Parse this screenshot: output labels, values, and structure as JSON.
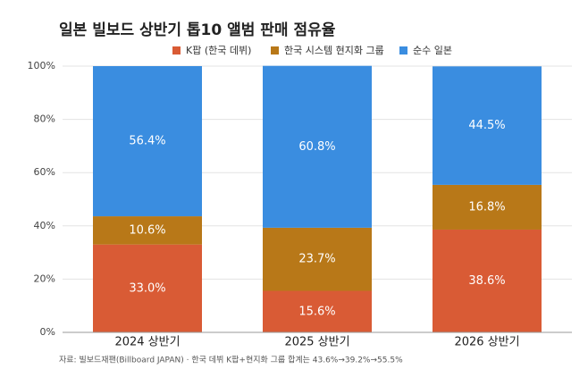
{
  "chart_data": {
    "type": "stacked-bar",
    "title": "일본 빌보드 상반기 톱10 앨범 판매 점유율",
    "source": "자료: 빌보드재팬(Billboard JAPAN) · 한국 데뷔 K팝+현지화 그룹 합계는 43.6%→39.2%→55.5%",
    "categories": [
      "2024 상반기",
      "2025 상반기",
      "2026 상반기"
    ],
    "series": [
      {
        "name": "K팝 (한국 데뷔)",
        "color": "#d95b35",
        "values": [
          33.0,
          15.6,
          38.6
        ],
        "value_labels": [
          "33.0%",
          "15.6%",
          "38.6%"
        ]
      },
      {
        "name": "한국 시스템 현지화 그룹",
        "color": "#b87818",
        "values": [
          10.6,
          23.7,
          16.8
        ],
        "value_labels": [
          "10.6%",
          "23.7%",
          "16.8%"
        ]
      },
      {
        "name": "순수 일본",
        "color": "#3a8de0",
        "values": [
          56.4,
          60.8,
          44.5
        ],
        "value_labels": [
          "56.4%",
          "60.8%",
          "44.5%"
        ]
      }
    ],
    "ylim": [
      0,
      100
    ],
    "yticks": [
      {
        "value": 0,
        "label": "0%"
      },
      {
        "value": 20,
        "label": "20%"
      },
      {
        "value": 40,
        "label": "40%"
      },
      {
        "value": 60,
        "label": "60%"
      },
      {
        "value": 80,
        "label": "80%"
      },
      {
        "value": 100,
        "label": "100%"
      }
    ],
    "grid": true
  }
}
